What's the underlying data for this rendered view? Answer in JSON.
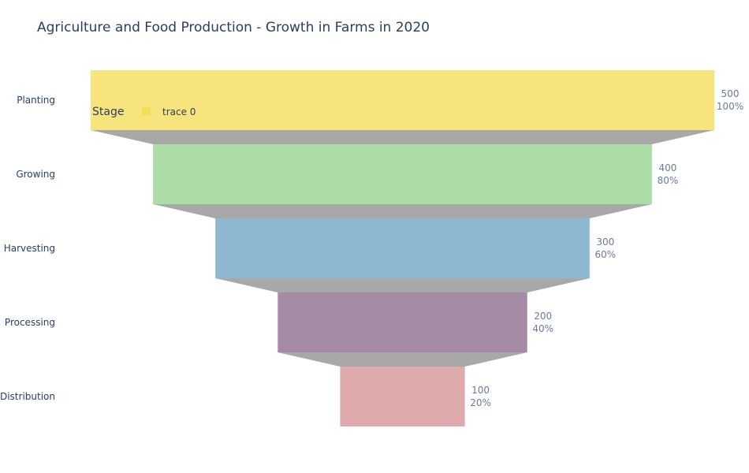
{
  "chart_data": {
    "type": "funnel",
    "title": "Agriculture and Food Production - Growth in Farms in 2020",
    "categories": [
      "Planting",
      "Growing",
      "Harvesting",
      "Processing",
      "Distribution"
    ],
    "values": [
      500,
      400,
      300,
      200,
      100
    ],
    "percent_labels": [
      "100%",
      "80%",
      "60%",
      "40%",
      "20%"
    ],
    "colors": [
      "#f7e47c",
      "#acdda7",
      "#8db8d2",
      "#a68ba6",
      "#dfaaab"
    ],
    "connector_color": "#a8a8a8",
    "legend": {
      "title": "Stage",
      "placement": "top-left",
      "entries": [
        {
          "name": "trace 0",
          "color": "#f5df5a"
        }
      ]
    }
  }
}
